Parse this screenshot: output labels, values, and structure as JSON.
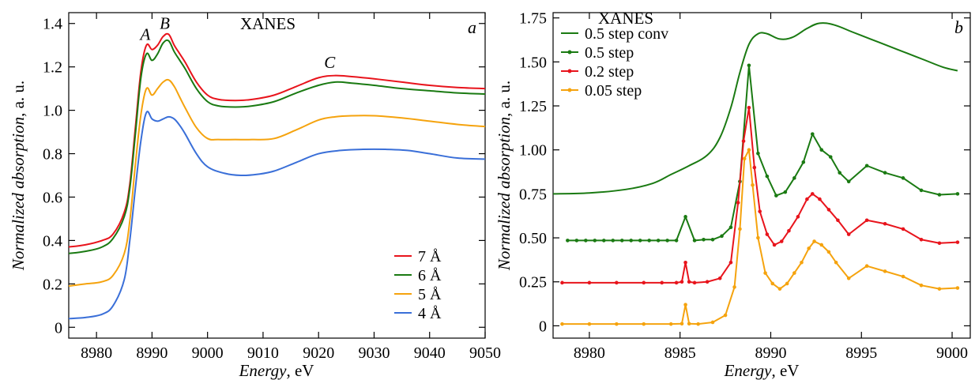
{
  "chart_data": [
    {
      "panel": "a",
      "type": "line",
      "title": "XANES",
      "xlabel": {
        "italic": "Energy",
        "rest": ", eV"
      },
      "ylabel": {
        "italic": "Normalized absorption",
        "rest": ", a. u."
      },
      "xlim": [
        8975,
        9050
      ],
      "ylim": [
        -0.05,
        1.45
      ],
      "xticks": [
        8980,
        8990,
        9000,
        9010,
        9020,
        9030,
        9040,
        9050
      ],
      "xtick_labels": [
        "8980",
        "8990",
        "9000",
        "9010",
        "9020",
        "9030",
        "9040",
        "9050"
      ],
      "yticks": [
        0,
        0.2,
        0.4,
        0.6,
        0.8,
        1.0,
        1.2,
        1.4
      ],
      "ytick_labels": [
        "0",
        "0.2",
        "0.4",
        "0.6",
        "0.8",
        "1.0",
        "1.2",
        "1.4"
      ],
      "legend_position": "bottom-right",
      "annotations": [
        {
          "text": "A",
          "x": 8988.8,
          "y": 1.31
        },
        {
          "text": "B",
          "x": 8992.3,
          "y": 1.36
        },
        {
          "text": "C",
          "x": 9022,
          "y": 1.18
        }
      ],
      "series": [
        {
          "name": "7 Å",
          "color": "#e8141c",
          "x": [
            8975,
            8978,
            8981,
            8983,
            8985,
            8986,
            8987,
            8988,
            8989,
            8990,
            8991,
            8992,
            8993,
            8994,
            8995,
            8996,
            8998,
            9000,
            9002,
            9005,
            9008,
            9012,
            9016,
            9020,
            9023,
            9026,
            9030,
            9035,
            9040,
            9045,
            9050
          ],
          "y": [
            0.37,
            0.38,
            0.4,
            0.43,
            0.53,
            0.66,
            0.92,
            1.18,
            1.3,
            1.28,
            1.3,
            1.34,
            1.35,
            1.3,
            1.26,
            1.22,
            1.13,
            1.07,
            1.05,
            1.045,
            1.05,
            1.07,
            1.11,
            1.15,
            1.16,
            1.155,
            1.145,
            1.13,
            1.115,
            1.105,
            1.1
          ]
        },
        {
          "name": "6 Å",
          "color": "#1a7a12",
          "x": [
            8975,
            8978,
            8981,
            8983,
            8985,
            8986,
            8987,
            8988,
            8989,
            8990,
            8991,
            8992,
            8993,
            8994,
            8995,
            8996,
            8998,
            9000,
            9002,
            9005,
            9008,
            9012,
            9016,
            9020,
            9023,
            9026,
            9030,
            9035,
            9040,
            9045,
            9050
          ],
          "y": [
            0.34,
            0.35,
            0.37,
            0.41,
            0.51,
            0.64,
            0.89,
            1.15,
            1.26,
            1.23,
            1.26,
            1.31,
            1.32,
            1.27,
            1.23,
            1.19,
            1.1,
            1.04,
            1.02,
            1.015,
            1.02,
            1.04,
            1.08,
            1.115,
            1.13,
            1.125,
            1.115,
            1.1,
            1.09,
            1.08,
            1.075
          ]
        },
        {
          "name": "5 Å",
          "color": "#f5a30e",
          "x": [
            8975,
            8978,
            8981,
            8983,
            8985,
            8986,
            8987,
            8988,
            8989,
            8990,
            8991,
            8992,
            8993,
            8994,
            8995,
            8996,
            8998,
            9000,
            9002,
            9005,
            9008,
            9012,
            9016,
            9020,
            9023,
            9026,
            9030,
            9035,
            9040,
            9045,
            9050
          ],
          "y": [
            0.19,
            0.2,
            0.21,
            0.24,
            0.34,
            0.49,
            0.75,
            0.98,
            1.1,
            1.07,
            1.1,
            1.13,
            1.14,
            1.11,
            1.06,
            1.01,
            0.92,
            0.87,
            0.865,
            0.865,
            0.865,
            0.87,
            0.91,
            0.955,
            0.97,
            0.975,
            0.975,
            0.965,
            0.95,
            0.935,
            0.925
          ]
        },
        {
          "name": "4 Å",
          "color": "#3a6fd8",
          "x": [
            8975,
            8978,
            8981,
            8983,
            8985,
            8986,
            8987,
            8988,
            8989,
            8990,
            8991,
            8992,
            8993,
            8994,
            8995,
            8996,
            8998,
            9000,
            9003,
            9006,
            9009,
            9012,
            9016,
            9020,
            9024,
            9028,
            9032,
            9036,
            9040,
            9045,
            9050
          ],
          "y": [
            0.04,
            0.045,
            0.06,
            0.1,
            0.22,
            0.4,
            0.64,
            0.86,
            0.99,
            0.96,
            0.95,
            0.96,
            0.97,
            0.96,
            0.93,
            0.89,
            0.8,
            0.74,
            0.71,
            0.7,
            0.705,
            0.72,
            0.76,
            0.8,
            0.815,
            0.82,
            0.82,
            0.815,
            0.8,
            0.78,
            0.775
          ]
        }
      ]
    },
    {
      "panel": "b",
      "type": "line",
      "title": "XANES",
      "xlabel": {
        "italic": "Energy",
        "rest": ", eV"
      },
      "ylabel": {
        "italic": "Normalized absorption",
        "rest": ", a. u."
      },
      "xlim": [
        8978,
        9001
      ],
      "ylim": [
        -0.07,
        1.78
      ],
      "xticks": [
        8980,
        8985,
        8990,
        8995,
        9000
      ],
      "xtick_labels": [
        "8980",
        "8985",
        "8990",
        "8995",
        "9000"
      ],
      "yticks": [
        0,
        0.25,
        0.5,
        0.75,
        1.0,
        1.25,
        1.5,
        1.75
      ],
      "ytick_labels": [
        "0",
        "0.25",
        "0.50",
        "0.75",
        "1.00",
        "1.25",
        "1.50",
        "1.75"
      ],
      "legend_position": "top-left",
      "series": [
        {
          "name": "0.5 step conv",
          "color": "#1a7a12",
          "markers": false,
          "x": [
            8978,
            8980,
            8982,
            8983.5,
            8984.5,
            8985.5,
            8986.5,
            8987.2,
            8987.8,
            8988.3,
            8988.8,
            8989.3,
            8989.8,
            8990.5,
            8991.2,
            8992,
            8992.7,
            8993.5,
            8994.5,
            8995.5,
            8996.5,
            8997.5,
            8998.5,
            8999.5,
            9000.3
          ],
          "y": [
            0.75,
            0.755,
            0.775,
            0.81,
            0.86,
            0.91,
            0.97,
            1.07,
            1.24,
            1.44,
            1.6,
            1.66,
            1.66,
            1.63,
            1.64,
            1.69,
            1.72,
            1.71,
            1.67,
            1.63,
            1.59,
            1.55,
            1.51,
            1.47,
            1.45
          ]
        },
        {
          "name": "0.5 step",
          "color": "#1a7a12",
          "markers": true,
          "x": [
            8978.8,
            8979.3,
            8979.8,
            8980.3,
            8980.8,
            8981.3,
            8981.8,
            8982.3,
            8982.8,
            8983.3,
            8983.8,
            8984.3,
            8984.8,
            8985.3,
            8985.8,
            8986.3,
            8986.8,
            8987.3,
            8987.8,
            8988.3,
            8988.8,
            8989.3,
            8989.8,
            8990.3,
            8990.8,
            8991.3,
            8991.8,
            8992.3,
            8992.8,
            8993.3,
            8993.8,
            8994.3,
            8995.3,
            8996.3,
            8997.3,
            8998.3,
            8999.3,
            9000.3
          ],
          "y": [
            0.485,
            0.485,
            0.485,
            0.485,
            0.485,
            0.485,
            0.485,
            0.485,
            0.485,
            0.485,
            0.485,
            0.485,
            0.485,
            0.62,
            0.485,
            0.49,
            0.49,
            0.51,
            0.56,
            0.82,
            1.48,
            0.98,
            0.85,
            0.74,
            0.76,
            0.84,
            0.93,
            1.09,
            1.0,
            0.96,
            0.87,
            0.82,
            0.91,
            0.87,
            0.84,
            0.77,
            0.745,
            0.75
          ]
        },
        {
          "name": "0.2 step",
          "color": "#e8141c",
          "markers": true,
          "x": [
            8978.5,
            8980,
            8981.5,
            8983,
            8984,
            8984.8,
            8985.1,
            8985.3,
            8985.5,
            8985.8,
            8986.5,
            8987.2,
            8987.8,
            8988.2,
            8988.5,
            8988.8,
            8989.1,
            8989.4,
            8989.8,
            8990.2,
            8990.6,
            8991.0,
            8991.5,
            8992.0,
            8992.3,
            8992.7,
            8993.2,
            8993.7,
            8994.3,
            8995.3,
            8996.3,
            8997.3,
            8998.3,
            8999.3,
            9000.3
          ],
          "y": [
            0.245,
            0.245,
            0.245,
            0.245,
            0.245,
            0.245,
            0.25,
            0.36,
            0.25,
            0.245,
            0.25,
            0.27,
            0.36,
            0.7,
            1.05,
            1.24,
            0.9,
            0.65,
            0.52,
            0.46,
            0.48,
            0.54,
            0.62,
            0.72,
            0.75,
            0.72,
            0.66,
            0.6,
            0.52,
            0.6,
            0.58,
            0.55,
            0.49,
            0.47,
            0.475
          ]
        },
        {
          "name": "0.05 step",
          "color": "#f5a30e",
          "markers": true,
          "x": [
            8978.5,
            8980,
            8981.5,
            8983,
            8984.5,
            8985.1,
            8985.3,
            8985.5,
            8986,
            8986.8,
            8987.5,
            8988.0,
            8988.3,
            8988.55,
            8988.8,
            8989.0,
            8989.3,
            8989.7,
            8990.1,
            8990.5,
            8990.9,
            8991.3,
            8991.7,
            8992.1,
            8992.4,
            8992.8,
            8993.2,
            8993.6,
            8994.3,
            8995.3,
            8996.3,
            8997.3,
            8998.3,
            8999.3,
            9000.3
          ],
          "y": [
            0.01,
            0.01,
            0.01,
            0.01,
            0.01,
            0.012,
            0.12,
            0.012,
            0.01,
            0.02,
            0.06,
            0.22,
            0.55,
            0.95,
            1.0,
            0.8,
            0.5,
            0.3,
            0.24,
            0.21,
            0.24,
            0.3,
            0.36,
            0.44,
            0.48,
            0.46,
            0.42,
            0.36,
            0.27,
            0.34,
            0.31,
            0.28,
            0.23,
            0.21,
            0.215
          ]
        }
      ]
    }
  ]
}
